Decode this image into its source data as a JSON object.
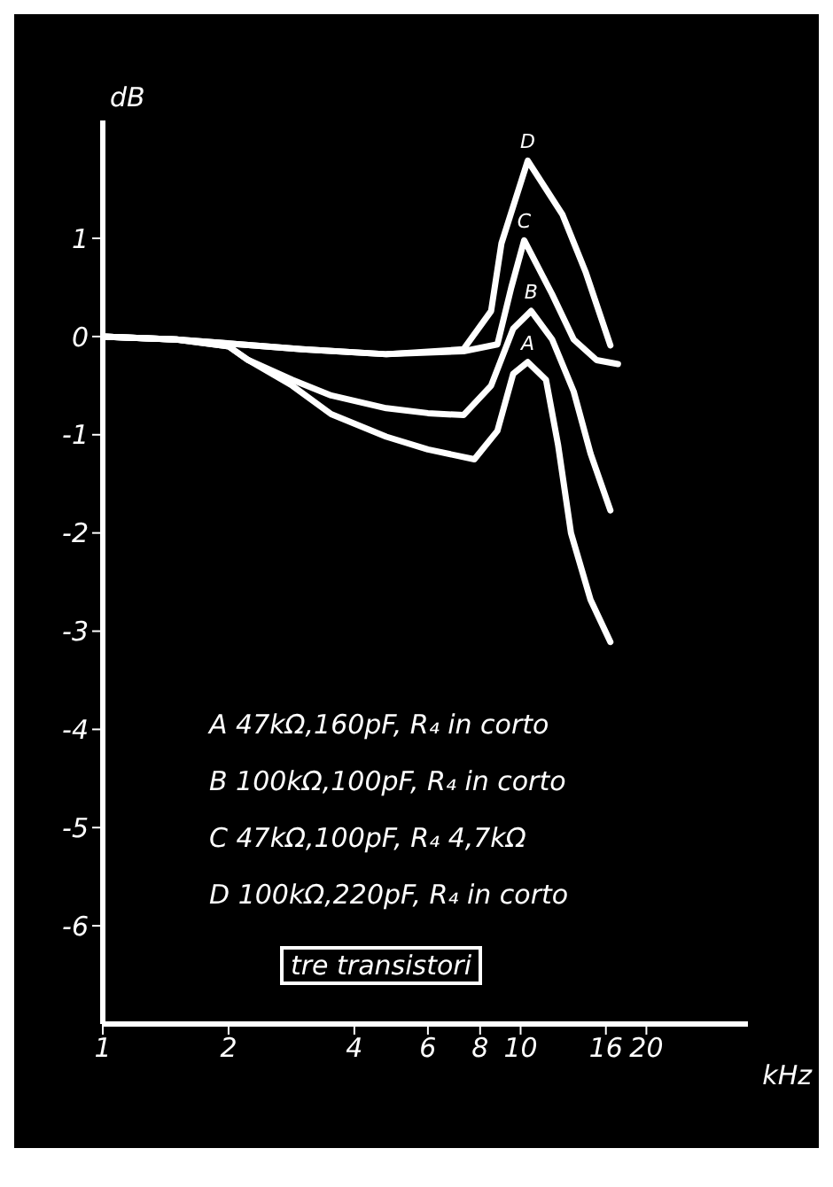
{
  "chart_data": {
    "type": "line",
    "xlabel": "kHz",
    "ylabel": "dB",
    "log": "x",
    "xlim": [
      1,
      35
    ],
    "xticks": [
      1,
      2,
      4,
      6,
      8,
      10,
      16,
      20
    ],
    "ylim": [
      -7,
      2.2
    ],
    "yticks": [
      -6,
      -5,
      -4,
      -3,
      -2,
      -1,
      0,
      1
    ],
    "marker": "none",
    "line_style": "solid",
    "series": [
      {
        "name": "A",
        "color": "#ffffff",
        "x": [
          1,
          1.5,
          2,
          2.23,
          2.84,
          3.52,
          4.77,
          6,
          7.75,
          8.8,
          9.6,
          10.4,
          11.5,
          12.3,
          13.2,
          14.7,
          16.4
        ],
        "values": [
          0,
          -0.03,
          -0.1,
          -0.24,
          -0.5,
          -0.79,
          -1.02,
          -1.15,
          -1.25,
          -0.96,
          -0.38,
          -0.26,
          -0.44,
          -1.11,
          -2.0,
          -2.68,
          -3.11
        ]
      },
      {
        "name": "B",
        "color": "#ffffff",
        "x": [
          1,
          1.5,
          2,
          2.23,
          2.84,
          3.52,
          4.77,
          6,
          7.3,
          8.5,
          9.6,
          10.6,
          11.9,
          13.4,
          14.7,
          16.4
        ],
        "values": [
          0,
          -0.03,
          -0.1,
          -0.24,
          -0.44,
          -0.6,
          -0.73,
          -0.78,
          -0.8,
          -0.5,
          0.08,
          0.26,
          -0.03,
          -0.56,
          -1.19,
          -1.77
        ]
      },
      {
        "name": "C",
        "color": "#ffffff",
        "x": [
          1,
          1.5,
          2,
          3,
          4.77,
          7.3,
          8.8,
          9.5,
          10.2,
          11.9,
          13.4,
          15.2,
          17.1
        ],
        "values": [
          0,
          -0.03,
          -0.07,
          -0.13,
          -0.18,
          -0.15,
          -0.08,
          0.5,
          0.98,
          0.43,
          -0.03,
          -0.24,
          -0.28
        ]
      },
      {
        "name": "D",
        "color": "#ffffff",
        "x": [
          1,
          1.5,
          2,
          3,
          4.77,
          7.3,
          8.5,
          9,
          10.4,
          12.6,
          14.3,
          16.4
        ],
        "values": [
          0,
          -0.03,
          -0.07,
          -0.13,
          -0.18,
          -0.13,
          0.26,
          0.95,
          1.79,
          1.24,
          0.66,
          -0.09
        ]
      }
    ],
    "annotations": [
      "A 47kΩ,160pF, R₄ in corto",
      "B 100kΩ,100pF, R₄ in corto",
      "C 47kΩ,100pF, R₄ 4,7kΩ",
      "D 100kΩ,220pF, R₄ in corto",
      "tre transistori"
    ]
  }
}
